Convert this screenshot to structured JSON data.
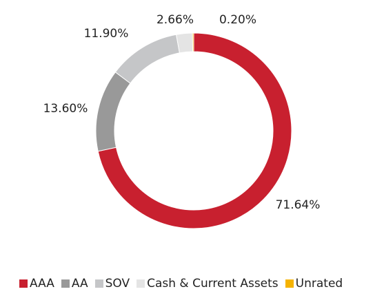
{
  "chart_data": {
    "type": "pie",
    "donut": true,
    "title": "",
    "legend_position": "bottom",
    "categories": [
      "AAA",
      "AA",
      "SOV",
      "Cash & Current Assets",
      "Unrated"
    ],
    "values": [
      71.64,
      13.6,
      11.9,
      2.66,
      0.2
    ],
    "labels": [
      "71.64%",
      "13.60%",
      "11.90%",
      "2.66%",
      "0.20%"
    ],
    "colors": [
      "#c8202f",
      "#999999",
      "#c5c6c8",
      "#e4e4e4",
      "#f5b300"
    ]
  }
}
